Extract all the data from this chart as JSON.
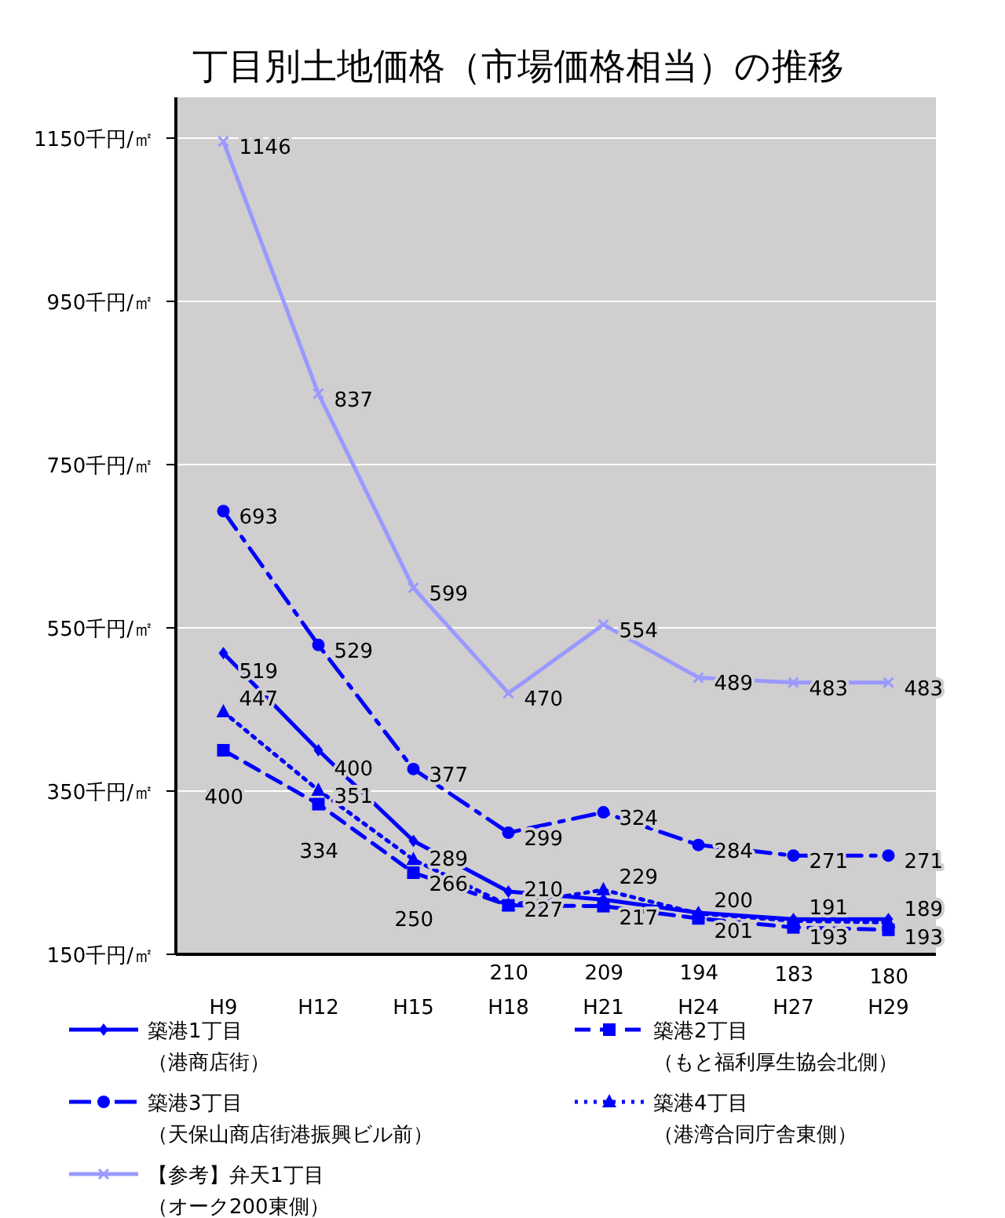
{
  "chart_data": {
    "type": "line",
    "title": "丁目別土地価格（市場価格相当）の推移",
    "categories": [
      "H9",
      "H12",
      "H15",
      "H18",
      "H21",
      "H24",
      "H27",
      "H29"
    ],
    "ylim": [
      150,
      1200
    ],
    "yticks": [
      {
        "value": 150,
        "label": "150千円/㎡"
      },
      {
        "value": 350,
        "label": "350千円/㎡"
      },
      {
        "value": 550,
        "label": "550千円/㎡"
      },
      {
        "value": 750,
        "label": "750千円/㎡"
      },
      {
        "value": 950,
        "label": "950千円/㎡"
      },
      {
        "value": 1150,
        "label": "1150千円/㎡"
      }
    ],
    "grid": "y",
    "legend": "bottom",
    "data_labels": true,
    "series": [
      {
        "name": "築港1丁目（港商店街）",
        "color": "#0000ff",
        "marker": "diamond",
        "line_style": "solid",
        "values": [
          519,
          400,
          289,
          227,
          217,
          201,
          193,
          193
        ]
      },
      {
        "name": "築港2丁目（もと福利厚生協会北側）",
        "color": "#0000ff",
        "marker": "square",
        "line_style": "dashed",
        "values": [
          400,
          334,
          250,
          210,
          209,
          194,
          183,
          180
        ]
      },
      {
        "name": "築港3丁目（天保山商店街港振興ビル前）",
        "color": "#0000ff",
        "marker": "circle",
        "line_style": "dashdot",
        "values": [
          693,
          529,
          377,
          299,
          324,
          284,
          271,
          271
        ]
      },
      {
        "name": "築港4丁目（港湾合同庁舎東側）",
        "color": "#0000ff",
        "marker": "triangle",
        "line_style": "dotted",
        "values": [
          447,
          351,
          266,
          210,
          229,
          200,
          191,
          189
        ]
      },
      {
        "name": "【参考】弁天1丁目（オーク200東側）",
        "color": "#9999ff",
        "marker": "cross",
        "line_style": "solid",
        "values": [
          1146,
          837,
          599,
          470,
          554,
          489,
          483,
          483
        ]
      }
    ]
  }
}
